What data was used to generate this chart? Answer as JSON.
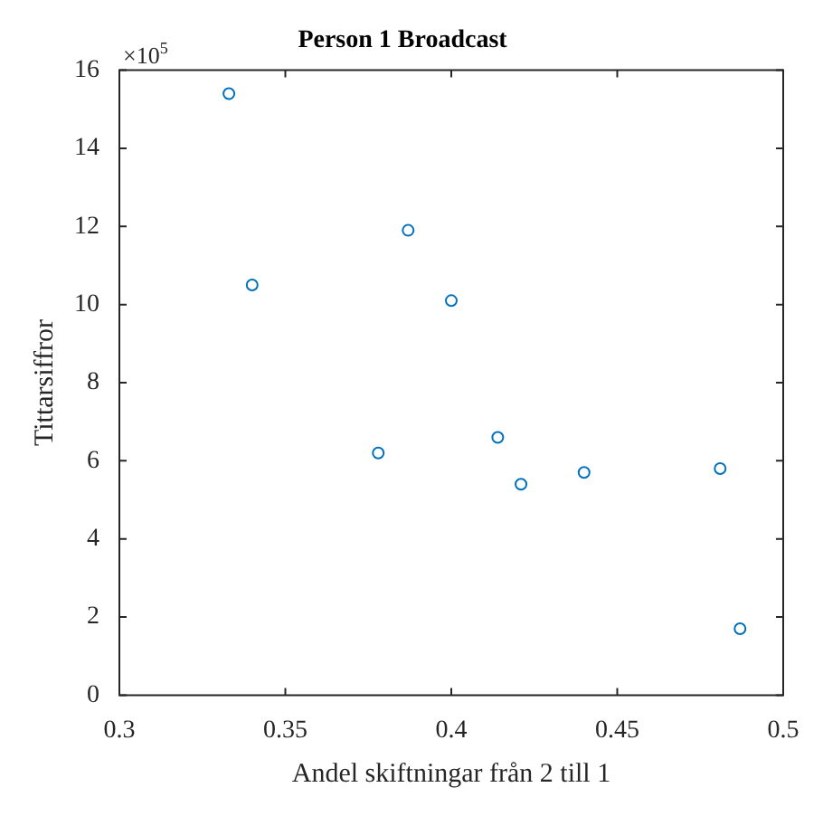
{
  "chart_data": {
    "type": "scatter",
    "title": "Person 1 Broadcast",
    "xlabel": "Andel skiftningar från 2 till 1",
    "ylabel": "Tittarsiffror",
    "annotations": [
      "×10$^{5}$"
    ],
    "x": [
      0.333,
      0.34,
      0.387,
      0.4,
      0.378,
      0.414,
      0.421,
      0.44,
      0.481,
      0.487
    ],
    "values": [
      15.4,
      10.5,
      11.9,
      10.1,
      6.2,
      6.6,
      5.4,
      5.7,
      5.8,
      1.7
    ],
    "color": "#0072bd",
    "marker": "circle",
    "xlim": [
      0.3,
      0.5
    ],
    "xticks": [
      0.3,
      0.35,
      0.4,
      0.45,
      0.5
    ],
    "ylim": [
      0,
      16
    ],
    "yticks": [
      0,
      2,
      4,
      6,
      8,
      10,
      12,
      14,
      16
    ]
  }
}
